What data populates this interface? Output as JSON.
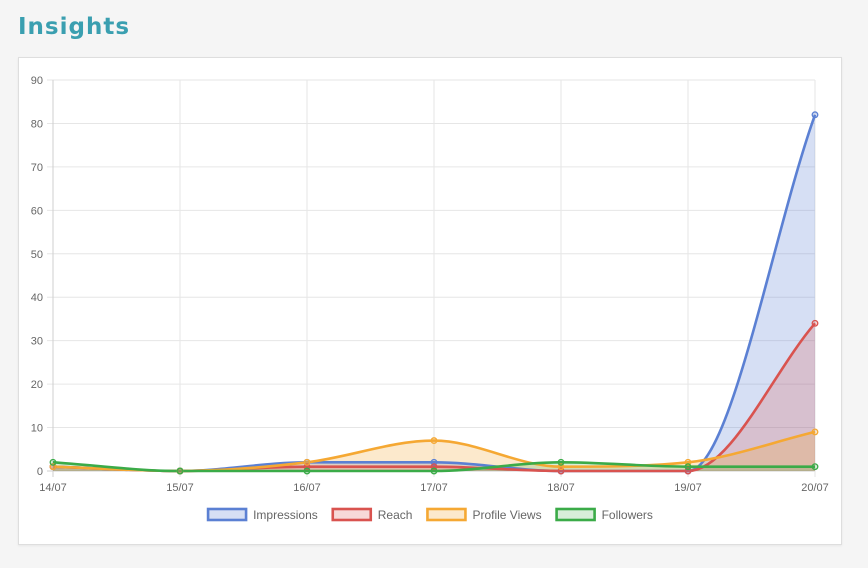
{
  "page": {
    "title": "Insights"
  },
  "chart_data": {
    "type": "line",
    "filled": true,
    "smooth": true,
    "categories": [
      "14/07",
      "15/07",
      "16/07",
      "17/07",
      "18/07",
      "19/07",
      "20/07"
    ],
    "ylim": [
      0,
      90
    ],
    "yticks": [
      0,
      10,
      20,
      30,
      40,
      50,
      60,
      70,
      80,
      90
    ],
    "grid": true,
    "legend_position": "bottom",
    "series": [
      {
        "name": "Impressions",
        "values": [
          1,
          0,
          2,
          2,
          0,
          0,
          82
        ],
        "color": "#5b80d3",
        "fill": "rgba(91,128,211,0.25)"
      },
      {
        "name": "Reach",
        "values": [
          1,
          0,
          1,
          1,
          0,
          0,
          34
        ],
        "color": "#d9534f",
        "fill": "rgba(217,83,79,0.22)"
      },
      {
        "name": "Profile Views",
        "values": [
          1,
          0,
          2,
          7,
          1,
          2,
          9
        ],
        "color": "#f5a833",
        "fill": "rgba(245,168,51,0.25)"
      },
      {
        "name": "Followers",
        "values": [
          2,
          0,
          0,
          0,
          2,
          1,
          1
        ],
        "color": "#3bab48",
        "fill": "rgba(59,171,72,0.2)"
      }
    ]
  }
}
